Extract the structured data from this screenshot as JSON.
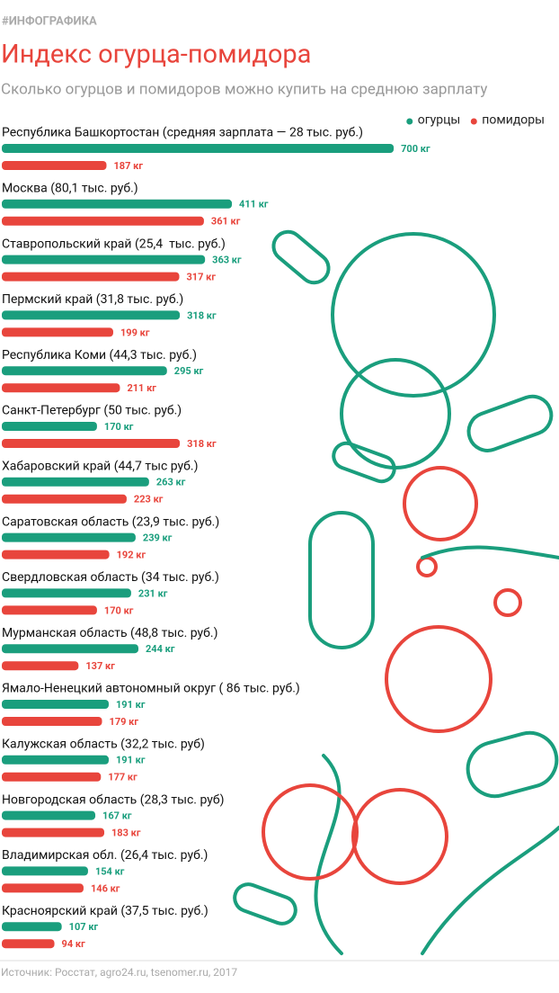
{
  "chart_data": {
    "type": "bar",
    "kicker": "#ИНФОГРАФИКА",
    "title": "Индекс огурца-помидора",
    "subtitle": "Сколько огурцов и помидоров можно купить на среднюю зарплату",
    "source": "Источник: Росстат, agro24.ru, tsenomer.ru, 2017",
    "legend": "top-right",
    "categories": [
      "Республика Башкортостан (средняя зарплата — 28 тыс. руб.)",
      "Москва (80,1 тыс. руб.)",
      "Ставропольский край (25,4  тыс. руб.)",
      "Пермский край (31,8 тыс. руб.)",
      "Республика Коми (44,3 тыс. руб.)",
      "Санкт-Петербург (50 тыс. руб.)",
      "Хабаровский край (44,7 тыс руб.)",
      "Саратовская область (23,9 тыс. руб.)",
      "Свердловская область (34 тыс. руб.)",
      "Мурманская область (48,8 тыс. руб.)",
      "Ямало-Ненецкий автономный округ ( 86 тыс. руб.)",
      "Калужская область (32,2 тыс. руб)",
      "Новгородская область (28,3 тыс. руб)",
      "Владимирская обл. (26,4 тыс. руб.)",
      "Красноярский край (37,5 тыс. руб.)"
    ],
    "series": [
      {
        "name": "огурцы",
        "color": "#1a9e7d",
        "values": [
          700,
          411,
          363,
          318,
          295,
          170,
          263,
          239,
          231,
          244,
          191,
          191,
          167,
          154,
          107
        ],
        "value_labels": [
          "700 кг",
          "411 кг",
          "363 кг",
          "318 кг",
          "295 кг",
          "170 кг",
          "263 кг",
          "239 кг",
          "231 кг",
          "244 кг",
          "191 кг",
          "191 кг",
          "167 кг",
          "154 кг",
          "107 кг"
        ]
      },
      {
        "name": "помидоры",
        "color": "#e8453c",
        "values": [
          187,
          361,
          317,
          199,
          211,
          318,
          223,
          192,
          170,
          137,
          179,
          177,
          183,
          146,
          94
        ],
        "value_labels": [
          "187 кг",
          "361 кг",
          "317 кг",
          "199 кг",
          "211 кг",
          "318 кг",
          "223 кг",
          "192 кг",
          "170 кг",
          "137 кг",
          "179 кг",
          "177 кг",
          "183 кг",
          "146 кг",
          "94 кг"
        ]
      }
    ]
  }
}
